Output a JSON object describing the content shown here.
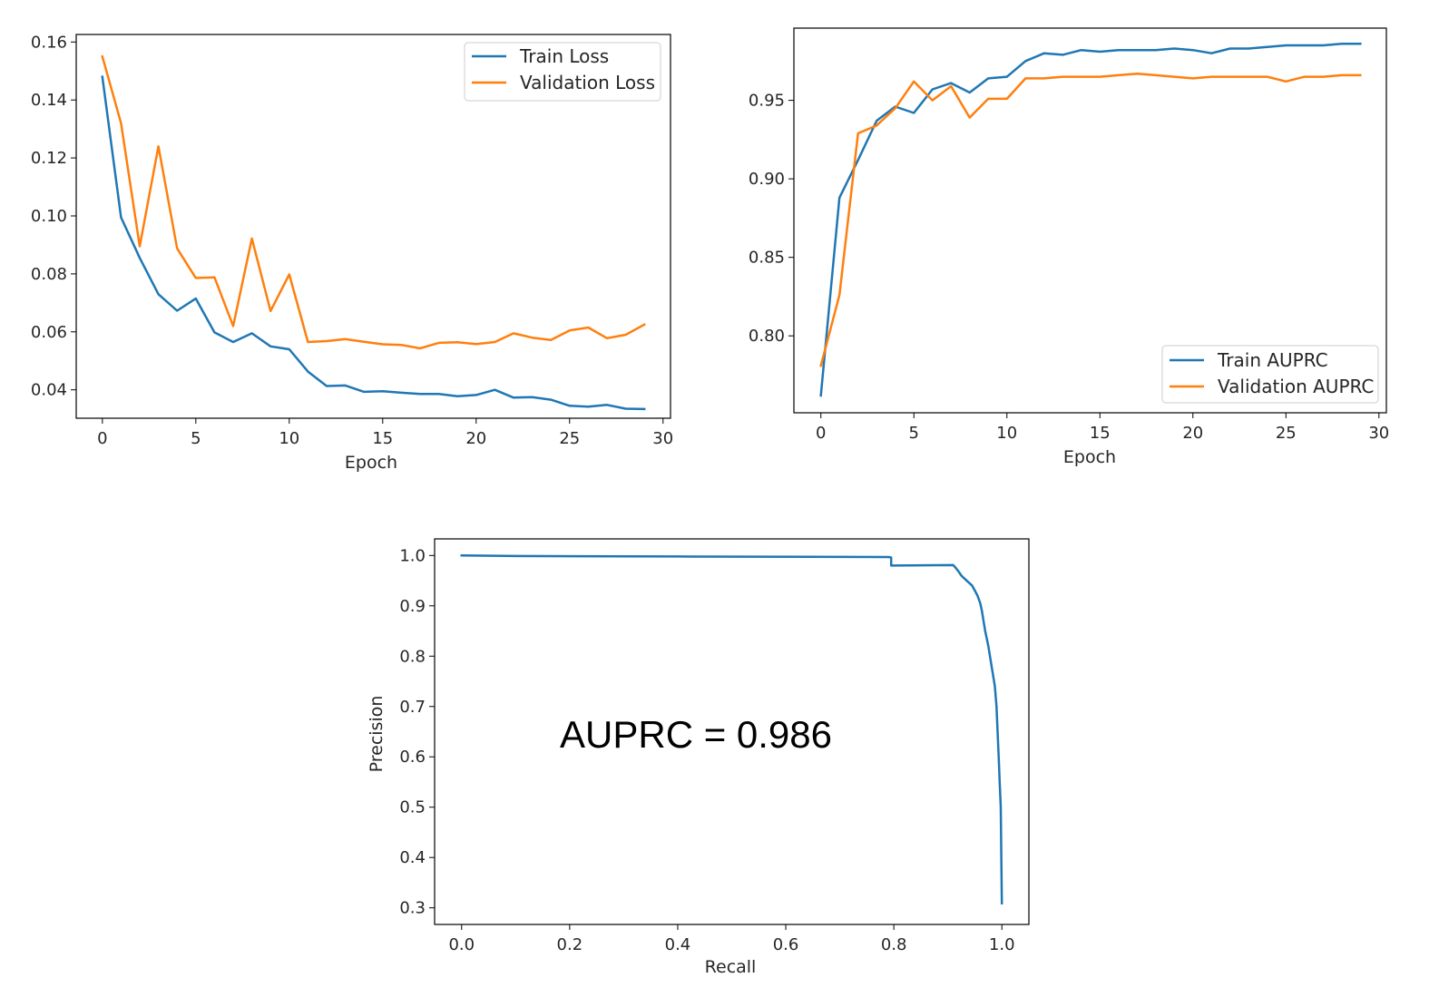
{
  "colors": {
    "train": "#1f77b4",
    "validation": "#ff7f0e",
    "axis": "#000000",
    "legend_border": "#cccccc"
  },
  "chart_data": [
    {
      "type": "line",
      "xlabel": "Epoch",
      "ylabel": "",
      "xlim": [
        -1.4,
        30.4
      ],
      "ylim": [
        0.0302,
        0.1626
      ],
      "xticks": [
        0,
        5,
        10,
        15,
        20,
        25,
        30
      ],
      "yticks": [
        0.04,
        0.06,
        0.08,
        0.1,
        0.12,
        0.14,
        0.16
      ],
      "ytick_labels": [
        "0.04",
        "0.06",
        "0.08",
        "0.10",
        "0.12",
        "0.14",
        "0.16"
      ],
      "legend": "top-right",
      "x": [
        0,
        1,
        2,
        3,
        4,
        5,
        6,
        7,
        8,
        9,
        10,
        11,
        12,
        13,
        14,
        15,
        16,
        17,
        18,
        19,
        20,
        21,
        22,
        23,
        24,
        25,
        26,
        27,
        28,
        29
      ],
      "series": [
        {
          "name": "Train Loss",
          "color": "#1f77b4",
          "values": [
            0.148,
            0.0995,
            0.0855,
            0.073,
            0.0673,
            0.0715,
            0.0598,
            0.0565,
            0.0595,
            0.055,
            0.054,
            0.0463,
            0.0413,
            0.0415,
            0.0393,
            0.0395,
            0.039,
            0.0386,
            0.0386,
            0.0378,
            0.0382,
            0.04,
            0.0373,
            0.0375,
            0.0366,
            0.0345,
            0.0342,
            0.0348,
            0.0335,
            0.0334
          ]
        },
        {
          "name": "Validation Loss",
          "color": "#ff7f0e",
          "values": [
            0.155,
            0.132,
            0.0895,
            0.124,
            0.0888,
            0.0786,
            0.0788,
            0.062,
            0.0922,
            0.0672,
            0.0798,
            0.0565,
            0.0568,
            0.0575,
            0.0566,
            0.0557,
            0.0555,
            0.0543,
            0.0562,
            0.0564,
            0.0558,
            0.0565,
            0.0595,
            0.058,
            0.0572,
            0.0605,
            0.0615,
            0.0578,
            0.059,
            0.0625
          ]
        }
      ]
    },
    {
      "type": "line",
      "xlabel": "Epoch",
      "ylabel": "",
      "xlim": [
        -1.45,
        30.4
      ],
      "ylim": [
        0.751,
        0.996
      ],
      "xticks": [
        0,
        5,
        10,
        15,
        20,
        25,
        30
      ],
      "yticks": [
        0.8,
        0.85,
        0.9,
        0.95
      ],
      "ytick_labels": [
        "0.80",
        "0.85",
        "0.90",
        "0.95"
      ],
      "legend": "bottom-right",
      "x": [
        0,
        1,
        2,
        3,
        4,
        5,
        6,
        7,
        8,
        9,
        10,
        11,
        12,
        13,
        14,
        15,
        16,
        17,
        18,
        19,
        20,
        21,
        22,
        23,
        24,
        25,
        26,
        27,
        28,
        29
      ],
      "series": [
        {
          "name": "Train AUPRC",
          "color": "#1f77b4",
          "values": [
            0.762,
            0.888,
            0.912,
            0.937,
            0.946,
            0.942,
            0.957,
            0.961,
            0.955,
            0.964,
            0.965,
            0.975,
            0.98,
            0.979,
            0.982,
            0.981,
            0.982,
            0.982,
            0.982,
            0.983,
            0.982,
            0.98,
            0.983,
            0.983,
            0.984,
            0.985,
            0.985,
            0.985,
            0.986,
            0.986
          ]
        },
        {
          "name": "Validation AUPRC",
          "color": "#ff7f0e",
          "values": [
            0.781,
            0.826,
            0.929,
            0.934,
            0.945,
            0.962,
            0.95,
            0.959,
            0.939,
            0.951,
            0.951,
            0.964,
            0.964,
            0.965,
            0.965,
            0.965,
            0.966,
            0.967,
            0.966,
            0.965,
            0.964,
            0.965,
            0.965,
            0.965,
            0.965,
            0.962,
            0.965,
            0.965,
            0.966,
            0.966
          ]
        }
      ]
    },
    {
      "type": "line",
      "xlabel": "Recall",
      "ylabel": "Precision",
      "xlim": [
        -0.05,
        1.05
      ],
      "ylim": [
        0.267,
        1.033
      ],
      "xticks": [
        0.0,
        0.2,
        0.4,
        0.6,
        0.8,
        1.0
      ],
      "xtick_labels": [
        "0.0",
        "0.2",
        "0.4",
        "0.6",
        "0.8",
        "1.0"
      ],
      "yticks": [
        0.3,
        0.4,
        0.5,
        0.6,
        0.7,
        0.8,
        0.9,
        1.0
      ],
      "ytick_labels": [
        "0.3",
        "0.4",
        "0.5",
        "0.6",
        "0.7",
        "0.8",
        "0.9",
        "1.0"
      ],
      "annotation": "AUPRC = 0.986",
      "series": [
        {
          "name": "",
          "color": "#1f77b4",
          "x": [
            0.0,
            0.1,
            0.4,
            0.79,
            0.795,
            0.795,
            0.8,
            0.91,
            0.915,
            0.92,
            0.925,
            0.93,
            0.935,
            0.94,
            0.945,
            0.95,
            0.955,
            0.96,
            0.963,
            0.966,
            0.969,
            0.972,
            0.975,
            0.978,
            0.981,
            0.984,
            0.987,
            0.99,
            0.992,
            0.994,
            0.996,
            0.998,
            0.999,
            1.0
          ],
          "y": [
            1.0,
            0.999,
            0.998,
            0.997,
            0.996,
            0.98,
            0.98,
            0.981,
            0.975,
            0.968,
            0.96,
            0.955,
            0.95,
            0.945,
            0.94,
            0.93,
            0.92,
            0.905,
            0.89,
            0.87,
            0.85,
            0.835,
            0.82,
            0.8,
            0.78,
            0.76,
            0.74,
            0.7,
            0.65,
            0.6,
            0.55,
            0.5,
            0.4,
            0.309
          ]
        }
      ]
    }
  ]
}
